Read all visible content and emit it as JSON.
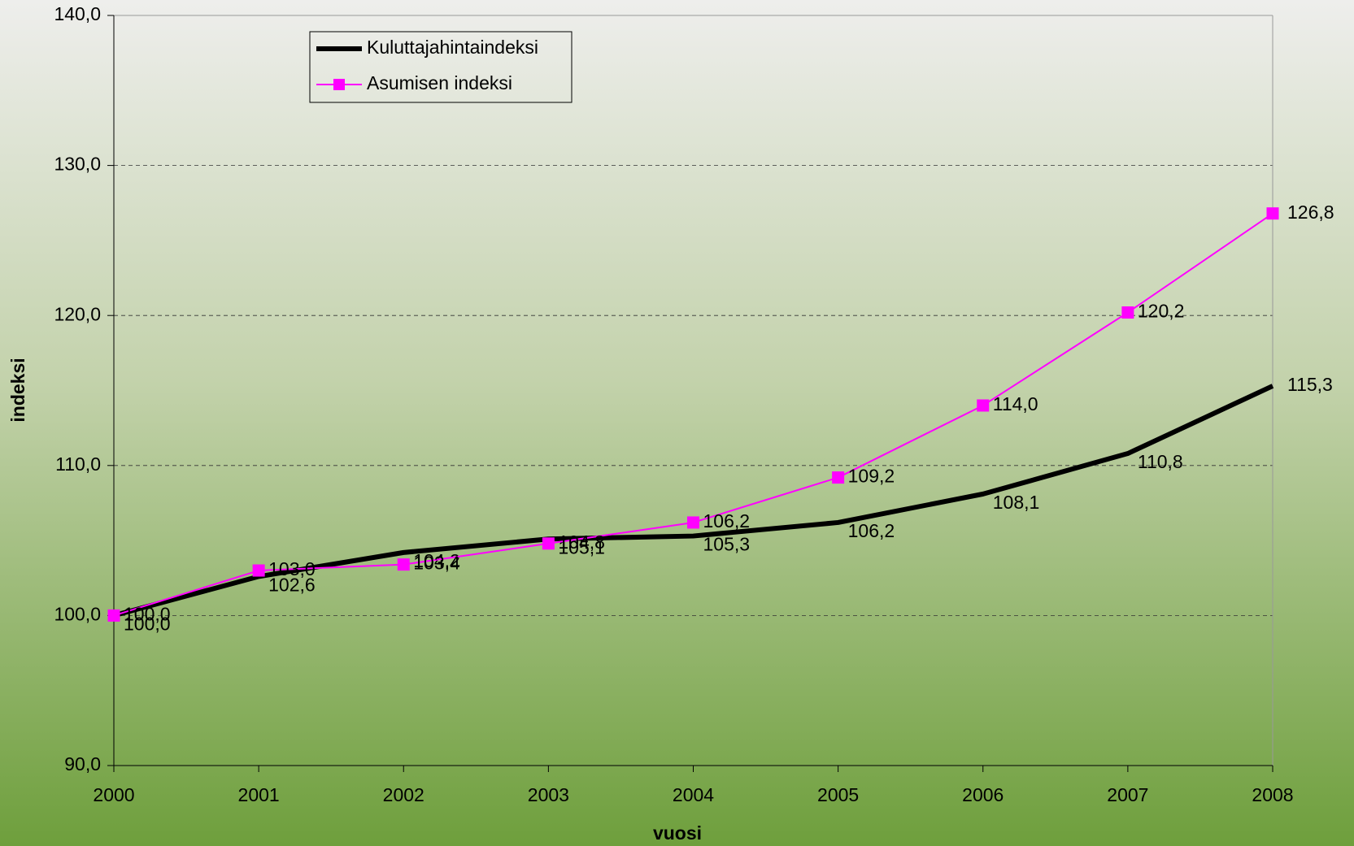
{
  "chart_data": {
    "type": "line",
    "x_label": "vuosi",
    "y_label": "indeksi",
    "categories": [
      "2000",
      "2001",
      "2002",
      "2003",
      "2004",
      "2005",
      "2006",
      "2007",
      "2008"
    ],
    "series": [
      {
        "name": "Kuluttajahintaindeksi",
        "color": "#000000",
        "values": [
          100.0,
          102.6,
          104.2,
          105.1,
          105.3,
          106.2,
          108.1,
          110.8,
          115.3
        ],
        "value_labels": [
          "100,0",
          "102,6",
          "104,2",
          "105,1",
          "105,3",
          "106,2",
          "108,1",
          "110,8",
          "115,3"
        ]
      },
      {
        "name": "Asumisen indeksi",
        "color": "#ff00ff",
        "marker": "square",
        "values": [
          100.0,
          103.0,
          103.4,
          104.8,
          106.2,
          109.2,
          114.0,
          120.2,
          126.8
        ],
        "value_labels": [
          "100,0",
          "103,0",
          "103,4",
          "104,8",
          "106,2",
          "109,2",
          "114,0",
          "120,2",
          "126,8"
        ]
      }
    ],
    "ylim": [
      90,
      140
    ],
    "yticks": [
      {
        "value": 90,
        "label": "90,0"
      },
      {
        "value": 100,
        "label": "100,0"
      },
      {
        "value": 110,
        "label": "110,0"
      },
      {
        "value": 120,
        "label": "120,0"
      },
      {
        "value": 130,
        "label": "130,0"
      },
      {
        "value": 140,
        "label": "140,0"
      }
    ],
    "grid": true,
    "legend": "top-left"
  }
}
